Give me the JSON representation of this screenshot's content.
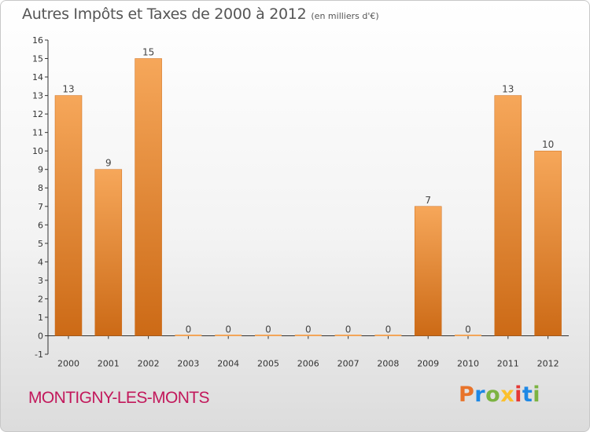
{
  "header": {
    "title": "Autres Impôts et Taxes de 2000 à 2012",
    "unit": "(en milliers d'€)"
  },
  "footer": {
    "commune": "MONTIGNY-LES-MONTS",
    "logo_text": "Proxiti",
    "logo_colors": [
      "#e8732a",
      "#1e88e5",
      "#7cb342",
      "#fbc02d",
      "#e53935",
      "#1e88e5",
      "#7cb342"
    ]
  },
  "colors": {
    "bar_top": "#f6a75a",
    "bar_bottom": "#cc6a16",
    "axis": "#333333",
    "grid_text": "#333333"
  },
  "chart_data": {
    "type": "bar",
    "title": "Autres Impôts et Taxes de 2000 à 2012",
    "subtitle": "(en milliers d'€)",
    "xlabel": "",
    "ylabel": "",
    "categories": [
      "2000",
      "2001",
      "2002",
      "2003",
      "2004",
      "2005",
      "2006",
      "2007",
      "2008",
      "2009",
      "2010",
      "2011",
      "2012"
    ],
    "values": [
      13,
      9,
      15,
      0,
      0,
      0,
      0,
      0,
      0,
      7,
      0,
      13,
      10
    ],
    "data_labels": [
      "13",
      "9",
      "15",
      "0",
      "0",
      "0",
      "0",
      "0",
      "0",
      "7",
      "0",
      "13",
      "10"
    ],
    "yticks": [
      "-1",
      "0",
      "1",
      "2",
      "3",
      "4",
      "5",
      "6",
      "7",
      "8",
      "9",
      "10",
      "11",
      "12",
      "13",
      "14",
      "15",
      "16"
    ],
    "ylim": [
      -1,
      16
    ],
    "grid": false,
    "legend": "none"
  }
}
